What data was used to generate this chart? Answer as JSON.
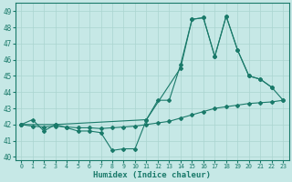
{
  "xlabel": "Humidex (Indice chaleur)",
  "background_color": "#c6e8e6",
  "grid_color": "#aad4d0",
  "line_color": "#1a7a6a",
  "xlim": [
    -0.5,
    23.5
  ],
  "ylim": [
    39.8,
    49.5
  ],
  "yticks": [
    40,
    41,
    42,
    43,
    44,
    45,
    46,
    47,
    48,
    49
  ],
  "xticks": [
    0,
    1,
    2,
    3,
    4,
    5,
    6,
    7,
    8,
    9,
    10,
    11,
    12,
    13,
    14,
    15,
    16,
    17,
    18,
    19,
    20,
    21,
    22,
    23
  ],
  "line1_x": [
    0,
    1,
    2,
    3,
    4,
    5,
    6,
    7,
    8,
    9,
    10,
    11,
    12,
    13,
    14,
    15,
    16,
    17,
    18,
    19,
    20,
    21,
    22
  ],
  "line1_y": [
    42.0,
    42.3,
    41.6,
    42.0,
    41.8,
    41.6,
    41.6,
    41.5,
    40.4,
    40.5,
    40.5,
    42.3,
    43.5,
    43.5,
    45.7,
    48.5,
    48.6,
    46.2,
    48.7,
    46.6,
    45.0,
    44.8,
    44.3
  ],
  "line2_x": [
    0,
    1,
    2,
    3,
    4,
    5,
    6,
    7,
    8,
    9,
    10,
    11,
    12,
    13,
    14,
    15,
    16,
    17,
    18,
    19,
    20,
    21,
    22,
    23
  ],
  "line2_y": [
    42.0,
    41.9,
    41.85,
    41.9,
    41.85,
    41.8,
    41.8,
    41.75,
    41.8,
    41.85,
    41.9,
    42.0,
    42.1,
    42.2,
    42.4,
    42.6,
    42.8,
    43.0,
    43.1,
    43.2,
    43.3,
    43.35,
    43.4,
    43.5
  ],
  "line3_x": [
    0,
    3,
    11,
    14,
    15,
    16,
    17,
    18,
    19,
    20,
    21,
    22,
    23
  ],
  "line3_y": [
    42.0,
    42.0,
    42.3,
    45.5,
    48.5,
    48.6,
    46.2,
    48.7,
    46.6,
    45.0,
    44.8,
    44.3,
    43.5
  ]
}
